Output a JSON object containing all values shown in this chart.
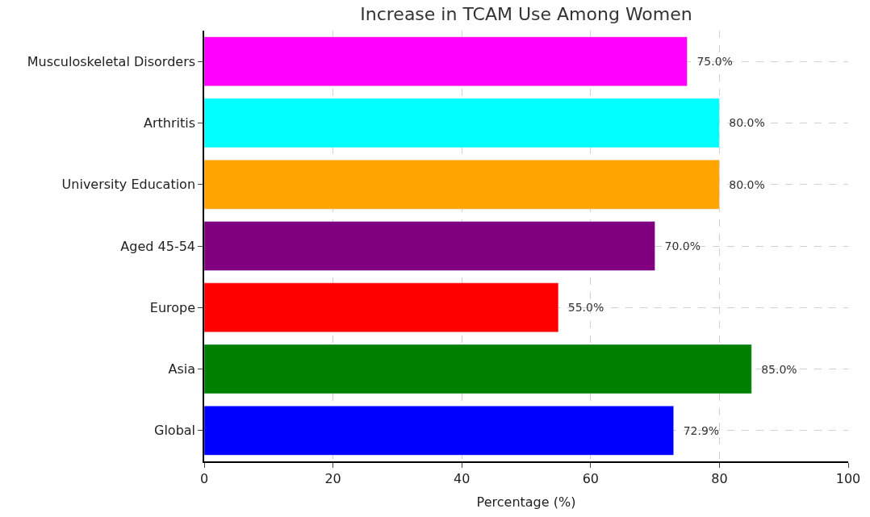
{
  "chart_data": {
    "type": "bar",
    "orientation": "horizontal",
    "title": "Increase in TCAM Use Among Women",
    "xlabel": "Percentage (%)",
    "categories": [
      "Musculoskeletal Disorders",
      "Arthritis",
      "University Education",
      "Aged 45-54",
      "Europe",
      "Asia",
      "Global"
    ],
    "values": [
      75.0,
      80.0,
      80.0,
      70.0,
      55.0,
      85.0,
      72.9
    ],
    "colors": [
      "#ff00ff",
      "#00ffff",
      "#ffa500",
      "#800080",
      "#ff0000",
      "#008000",
      "#0000ff"
    ],
    "value_labels": [
      "75.0%",
      "80.0%",
      "80.0%",
      "70.0%",
      "55.0%",
      "85.0%",
      "72.9%"
    ],
    "xlim": [
      0,
      100
    ],
    "xticks": [
      0,
      20,
      40,
      60,
      80,
      100
    ],
    "grid": true
  }
}
